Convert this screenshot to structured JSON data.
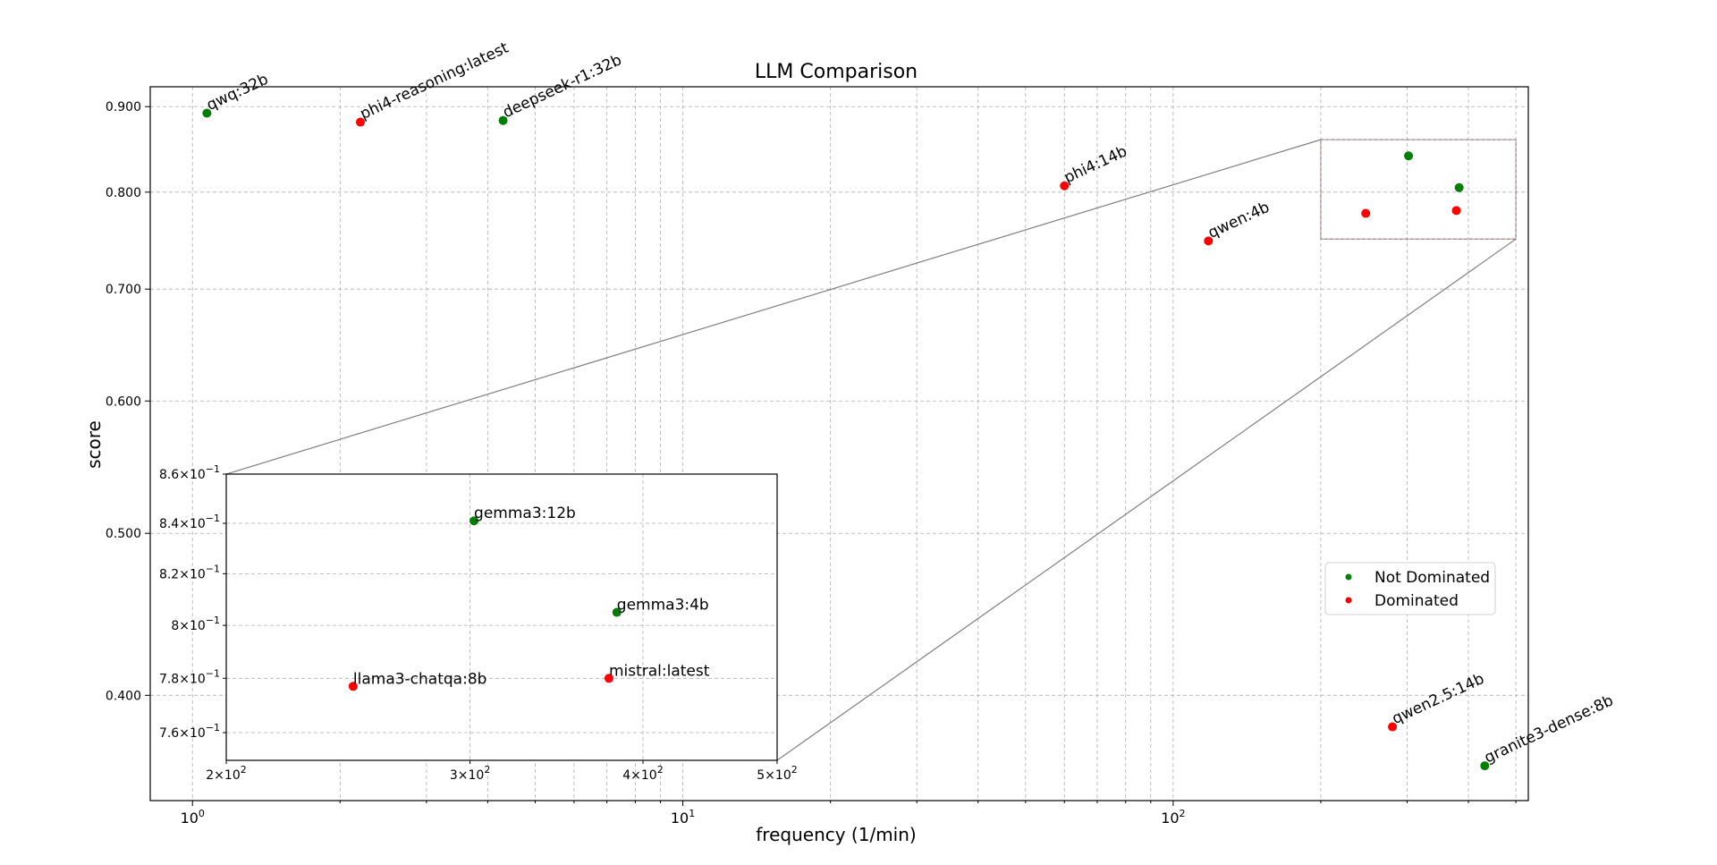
{
  "chart_data": {
    "type": "scatter",
    "title": "LLM Comparison",
    "xlabel": "frequency (1/min)",
    "ylabel": "score",
    "xscale": "log",
    "yscale": "log",
    "xlim": [
      0.82,
      530
    ],
    "ylim": [
      0.346,
      0.925
    ],
    "x_ticks": [
      {
        "value": 1,
        "base": "10",
        "exp": "0"
      },
      {
        "value": 10,
        "base": "10",
        "exp": "1"
      },
      {
        "value": 100,
        "base": "10",
        "exp": "2"
      }
    ],
    "y_ticks": [
      {
        "value": 0.9,
        "label": "0.900"
      },
      {
        "value": 0.8,
        "label": "0.800"
      },
      {
        "value": 0.7,
        "label": "0.700"
      },
      {
        "value": 0.6,
        "label": "0.600"
      },
      {
        "value": 0.5,
        "label": "0.500"
      },
      {
        "value": 0.4,
        "label": "0.400"
      }
    ],
    "grid": true,
    "legend_position": "right",
    "series": [
      {
        "name": "Not Dominated",
        "color": "#007f00",
        "points": [
          {
            "label": "qwq:32b",
            "x": 1.07,
            "y": 0.892
          },
          {
            "label": "deepseek-r1:32b",
            "x": 4.3,
            "y": 0.883
          },
          {
            "label": "gemma3:12b",
            "x": 302,
            "y": 0.841
          },
          {
            "label": "gemma3:4b",
            "x": 383,
            "y": 0.805
          },
          {
            "label": "granite3-dense:8b",
            "x": 432,
            "y": 0.363
          }
        ]
      },
      {
        "name": "Dominated",
        "color": "#ff0000",
        "points": [
          {
            "label": "phi4-reasoning:latest",
            "x": 2.2,
            "y": 0.881
          },
          {
            "label": "phi4:14b",
            "x": 60,
            "y": 0.807
          },
          {
            "label": "qwen:4b",
            "x": 118,
            "y": 0.748
          },
          {
            "label": "llama3-chatqa:8b",
            "x": 247,
            "y": 0.777
          },
          {
            "label": "mistral:latest",
            "x": 378,
            "y": 0.78
          },
          {
            "label": "qwen2.5:14b",
            "x": 280,
            "y": 0.383
          }
        ]
      }
    ],
    "inset": {
      "xlim": [
        200,
        500
      ],
      "ylim": [
        0.75,
        0.86
      ],
      "x_ticks": [
        {
          "value": 200,
          "mant": "2",
          "base": "10",
          "exp": "2"
        },
        {
          "value": 300,
          "mant": "3",
          "base": "10",
          "exp": "2"
        },
        {
          "value": 400,
          "mant": "4",
          "base": "10",
          "exp": "2"
        },
        {
          "value": 500,
          "mant": "5",
          "base": "10",
          "exp": "2"
        }
      ],
      "y_ticks": [
        {
          "value": 0.86,
          "mant": "8.6",
          "base": "10",
          "exp": "−1"
        },
        {
          "value": 0.84,
          "mant": "8.4",
          "base": "10",
          "exp": "−1"
        },
        {
          "value": 0.82,
          "mant": "8.2",
          "base": "10",
          "exp": "−1"
        },
        {
          "value": 0.8,
          "mant": "8",
          "base": "10",
          "exp": "−1"
        },
        {
          "value": 0.78,
          "mant": "7.8",
          "base": "10",
          "exp": "−1"
        },
        {
          "value": 0.76,
          "mant": "7.6",
          "base": "10",
          "exp": "−1"
        }
      ]
    }
  }
}
